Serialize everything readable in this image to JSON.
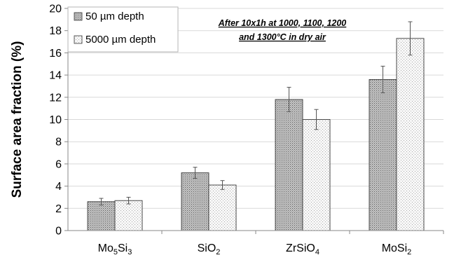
{
  "chart_data": {
    "type": "bar",
    "categories": [
      {
        "base": "Mo",
        "sub1": "5",
        "mid": "Si",
        "sub2": "3",
        "label": "Mo5Si3"
      },
      {
        "base": "SiO",
        "sub1": "2",
        "mid": "",
        "sub2": "",
        "label": "SiO2"
      },
      {
        "base": "ZrSiO",
        "sub1": "4",
        "mid": "",
        "sub2": "",
        "label": "ZrSiO4"
      },
      {
        "base": "MoSi",
        "sub1": "2",
        "mid": "",
        "sub2": "",
        "label": "MoSi2"
      }
    ],
    "series": [
      {
        "name": "50 µm depth",
        "values": [
          2.6,
          5.2,
          11.8,
          13.6
        ],
        "errors": [
          0.3,
          0.5,
          1.1,
          1.2
        ],
        "fill": "dark-stipple"
      },
      {
        "name": "5000 µm depth",
        "values": [
          2.7,
          4.1,
          10.0,
          17.3
        ],
        "errors": [
          0.3,
          0.4,
          0.9,
          1.5
        ],
        "fill": "light-stipple"
      }
    ],
    "ylabel": "Surface area fraction  (%)",
    "xlabel": "",
    "ylim": [
      0,
      20
    ],
    "yticks": [
      0,
      2,
      4,
      6,
      8,
      10,
      12,
      14,
      16,
      18,
      20
    ],
    "grid": true,
    "legend_position": "top-left",
    "annotation": [
      "After 10x1h at 1000, 1100, 1200",
      "and 1300°C in dry air"
    ]
  }
}
